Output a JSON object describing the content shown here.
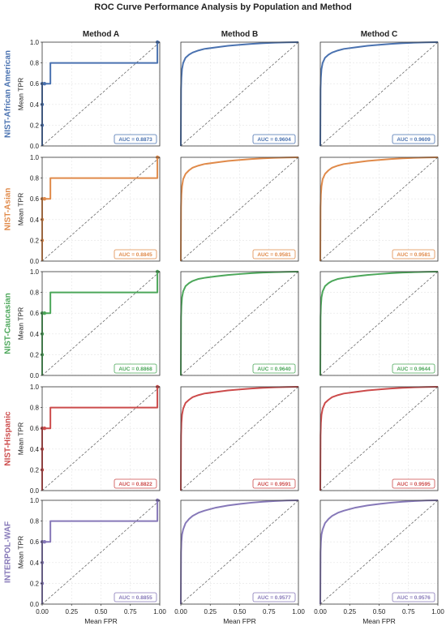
{
  "figure": {
    "title": "ROC Curve Performance Analysis by Population and Method",
    "col_titles": [
      "Method A",
      "Method B",
      "Method C"
    ],
    "xlabel": "Mean FPR",
    "ylabel": "Mean TPR"
  },
  "chart_data": {
    "type": "line",
    "title": "ROC Curve Performance Analysis by Population and Method",
    "xlabel": "Mean FPR",
    "ylabel": "Mean TPR",
    "xlim": [
      0,
      1
    ],
    "ylim": [
      0,
      1
    ],
    "xticks": [
      "0.00",
      "0.25",
      "0.50",
      "0.75",
      "1.00"
    ],
    "yticks": [
      "0.0",
      "0.2",
      "0.4",
      "0.6",
      "0.8",
      "1.0"
    ],
    "grid": true,
    "diagonal_reference": true,
    "rows": [
      {
        "population": "NIST-African American",
        "color": "#4a72b0"
      },
      {
        "population": "NIST-Asian",
        "color": "#e08a4a"
      },
      {
        "population": "NIST-Caucasian",
        "color": "#4ca75a"
      },
      {
        "population": "NIST-Hispanic",
        "color": "#cc4b4b"
      },
      {
        "population": "INTERPOL-WAF",
        "color": "#8678b8"
      }
    ],
    "method_a_curves": [
      {
        "x": [
          0,
          0,
          0,
          0,
          0.02,
          0.02,
          0.07,
          0.07,
          0.98,
          0.98,
          1.0
        ],
        "y": [
          0,
          0.2,
          0.4,
          0.6,
          0.6,
          0.6,
          0.6,
          0.8,
          0.8,
          1.0,
          1.0
        ]
      },
      {
        "x": [
          0,
          0,
          0,
          0,
          0.02,
          0.02,
          0.07,
          0.07,
          0.98,
          0.98,
          1.0
        ],
        "y": [
          0,
          0.2,
          0.4,
          0.6,
          0.6,
          0.6,
          0.6,
          0.8,
          0.8,
          1.0,
          1.0
        ]
      },
      {
        "x": [
          0,
          0,
          0,
          0,
          0.02,
          0.02,
          0.07,
          0.07,
          0.98,
          0.98,
          1.0
        ],
        "y": [
          0,
          0.2,
          0.4,
          0.6,
          0.6,
          0.6,
          0.6,
          0.8,
          0.8,
          1.0,
          1.0
        ]
      },
      {
        "x": [
          0,
          0,
          0,
          0,
          0.02,
          0.02,
          0.07,
          0.07,
          0.98,
          0.98,
          1.0
        ],
        "y": [
          0,
          0.2,
          0.4,
          0.6,
          0.6,
          0.6,
          0.6,
          0.8,
          0.8,
          1.0,
          1.0
        ]
      },
      {
        "x": [
          0,
          0,
          0,
          0,
          0.02,
          0.02,
          0.07,
          0.07,
          0.98,
          0.98,
          1.0
        ],
        "y": [
          0,
          0.2,
          0.4,
          0.6,
          0.6,
          0.6,
          0.6,
          0.8,
          0.8,
          1.0,
          1.0
        ]
      }
    ],
    "method_a_markers": [
      {
        "x": [
          0,
          0,
          0,
          0.02,
          0.98
        ],
        "y": [
          0.2,
          0.4,
          0.6,
          0.6,
          1.0
        ]
      },
      {
        "x": [
          0,
          0,
          0,
          0.02,
          0.98
        ],
        "y": [
          0.2,
          0.4,
          0.6,
          0.6,
          1.0
        ]
      },
      {
        "x": [
          0,
          0,
          0,
          0.02,
          0.98
        ],
        "y": [
          0.2,
          0.4,
          0.6,
          0.6,
          1.0
        ]
      },
      {
        "x": [
          0,
          0,
          0,
          0.02,
          0.98
        ],
        "y": [
          0.2,
          0.4,
          0.6,
          0.6,
          1.0
        ]
      },
      {
        "x": [
          0,
          0,
          0,
          0.02,
          0.98
        ],
        "y": [
          0.2,
          0.4,
          0.6,
          0.6,
          1.0
        ]
      }
    ],
    "smooth_curves": [
      [
        {
          "x": [
            0,
            0.002,
            0.005,
            0.01,
            0.02,
            0.04,
            0.07,
            0.1,
            0.15,
            0.2,
            0.3,
            0.4,
            0.5,
            0.6,
            0.7,
            0.8,
            0.9,
            1.0
          ],
          "y": [
            0,
            0.55,
            0.66,
            0.74,
            0.8,
            0.85,
            0.88,
            0.9,
            0.92,
            0.935,
            0.95,
            0.965,
            0.975,
            0.983,
            0.99,
            0.995,
            0.998,
            1.0
          ]
        },
        {
          "x": [
            0,
            0.002,
            0.005,
            0.01,
            0.02,
            0.04,
            0.07,
            0.1,
            0.15,
            0.2,
            0.3,
            0.4,
            0.5,
            0.6,
            0.7,
            0.8,
            0.9,
            1.0
          ],
          "y": [
            0,
            0.55,
            0.66,
            0.74,
            0.8,
            0.85,
            0.88,
            0.9,
            0.92,
            0.935,
            0.95,
            0.965,
            0.975,
            0.983,
            0.99,
            0.995,
            0.998,
            1.0
          ]
        }
      ],
      [
        {
          "x": [
            0,
            0.002,
            0.005,
            0.01,
            0.02,
            0.04,
            0.07,
            0.1,
            0.15,
            0.2,
            0.3,
            0.4,
            0.5,
            0.6,
            0.7,
            0.8,
            0.9,
            1.0
          ],
          "y": [
            0,
            0.52,
            0.64,
            0.72,
            0.79,
            0.84,
            0.875,
            0.9,
            0.92,
            0.935,
            0.95,
            0.965,
            0.975,
            0.983,
            0.99,
            0.995,
            0.998,
            1.0
          ]
        },
        {
          "x": [
            0,
            0.002,
            0.005,
            0.01,
            0.02,
            0.04,
            0.07,
            0.1,
            0.15,
            0.2,
            0.3,
            0.4,
            0.5,
            0.6,
            0.7,
            0.8,
            0.9,
            1.0
          ],
          "y": [
            0,
            0.52,
            0.64,
            0.72,
            0.79,
            0.84,
            0.875,
            0.9,
            0.92,
            0.935,
            0.95,
            0.965,
            0.975,
            0.983,
            0.99,
            0.995,
            0.998,
            1.0
          ]
        }
      ],
      [
        {
          "x": [
            0,
            0.002,
            0.005,
            0.01,
            0.02,
            0.04,
            0.07,
            0.1,
            0.15,
            0.2,
            0.3,
            0.4,
            0.5,
            0.6,
            0.7,
            0.8,
            0.9,
            1.0
          ],
          "y": [
            0,
            0.56,
            0.67,
            0.75,
            0.81,
            0.86,
            0.89,
            0.91,
            0.93,
            0.94,
            0.955,
            0.968,
            0.977,
            0.985,
            0.991,
            0.995,
            0.998,
            1.0
          ]
        },
        {
          "x": [
            0,
            0.002,
            0.005,
            0.01,
            0.02,
            0.04,
            0.07,
            0.1,
            0.15,
            0.2,
            0.3,
            0.4,
            0.5,
            0.6,
            0.7,
            0.8,
            0.9,
            1.0
          ],
          "y": [
            0,
            0.56,
            0.67,
            0.75,
            0.81,
            0.86,
            0.89,
            0.91,
            0.93,
            0.94,
            0.955,
            0.968,
            0.977,
            0.985,
            0.991,
            0.995,
            0.998,
            1.0
          ]
        }
      ],
      [
        {
          "x": [
            0,
            0.002,
            0.005,
            0.01,
            0.02,
            0.04,
            0.07,
            0.1,
            0.15,
            0.2,
            0.3,
            0.4,
            0.5,
            0.6,
            0.7,
            0.8,
            0.9,
            1.0
          ],
          "y": [
            0,
            0.53,
            0.65,
            0.73,
            0.79,
            0.845,
            0.875,
            0.9,
            0.92,
            0.935,
            0.95,
            0.965,
            0.975,
            0.983,
            0.99,
            0.995,
            0.998,
            1.0
          ]
        },
        {
          "x": [
            0,
            0.002,
            0.005,
            0.01,
            0.02,
            0.04,
            0.07,
            0.1,
            0.15,
            0.2,
            0.3,
            0.4,
            0.5,
            0.6,
            0.7,
            0.8,
            0.9,
            1.0
          ],
          "y": [
            0,
            0.53,
            0.65,
            0.73,
            0.79,
            0.845,
            0.875,
            0.9,
            0.92,
            0.935,
            0.95,
            0.965,
            0.975,
            0.983,
            0.99,
            0.995,
            0.998,
            1.0
          ]
        }
      ],
      [
        {
          "x": [
            0,
            0.002,
            0.005,
            0.01,
            0.02,
            0.04,
            0.07,
            0.1,
            0.15,
            0.2,
            0.3,
            0.4,
            0.5,
            0.6,
            0.7,
            0.8,
            0.9,
            1.0
          ],
          "y": [
            0,
            0.5,
            0.6,
            0.67,
            0.72,
            0.78,
            0.82,
            0.85,
            0.88,
            0.9,
            0.93,
            0.95,
            0.965,
            0.977,
            0.986,
            0.993,
            0.998,
            1.0
          ]
        },
        {
          "x": [
            0,
            0.002,
            0.005,
            0.01,
            0.02,
            0.04,
            0.07,
            0.1,
            0.15,
            0.2,
            0.3,
            0.4,
            0.5,
            0.6,
            0.7,
            0.8,
            0.9,
            1.0
          ],
          "y": [
            0,
            0.5,
            0.6,
            0.67,
            0.72,
            0.78,
            0.82,
            0.85,
            0.88,
            0.9,
            0.93,
            0.95,
            0.965,
            0.977,
            0.986,
            0.993,
            0.998,
            1.0
          ]
        }
      ]
    ],
    "auc_labels": [
      [
        "AUC = 0.8873",
        "AUC = 0.9604",
        "AUC = 0.9609"
      ],
      [
        "AUC = 0.8845",
        "AUC = 0.9581",
        "AUC = 0.9581"
      ],
      [
        "AUC = 0.8868",
        "AUC = 0.9640",
        "AUC = 0.9644"
      ],
      [
        "AUC = 0.8822",
        "AUC = 0.9591",
        "AUC = 0.9595"
      ],
      [
        "AUC = 0.8855",
        "AUC = 0.9577",
        "AUC = 0.9576"
      ]
    ]
  }
}
